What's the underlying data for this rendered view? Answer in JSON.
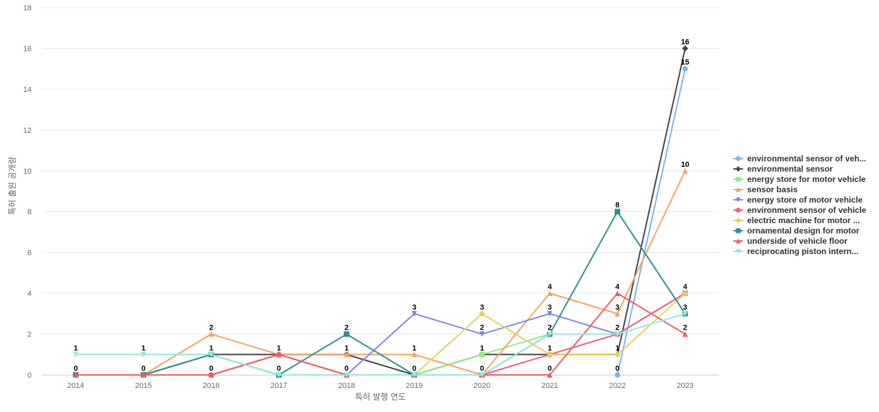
{
  "chart_data": {
    "type": "line",
    "title": "",
    "xlabel": "특허 발행 연도",
    "ylabel": "특허 출원 공개량",
    "x": [
      "2014",
      "2015",
      "2016",
      "2017",
      "2018",
      "2019",
      "2020",
      "2021",
      "2022",
      "2023"
    ],
    "ylim": [
      0,
      18
    ],
    "yticks": [
      0,
      2,
      4,
      6,
      8,
      10,
      12,
      14,
      16,
      18
    ],
    "grid": true,
    "legend_position": "right",
    "series": [
      {
        "name": "environmental sensor of veh...",
        "color": "#7cb5ec",
        "marker": "circle",
        "values": [
          null,
          null,
          null,
          null,
          null,
          null,
          null,
          null,
          0,
          15
        ]
      },
      {
        "name": "environmental sensor",
        "color": "#434348",
        "marker": "diamond",
        "values": [
          0,
          0,
          1,
          1,
          1,
          0,
          1,
          1,
          1,
          16
        ]
      },
      {
        "name": "energy store for motor vehicle",
        "color": "#90ed7d",
        "marker": "square",
        "values": [
          null,
          null,
          null,
          null,
          null,
          0,
          1,
          2,
          2,
          4
        ]
      },
      {
        "name": "sensor basis",
        "color": "#f7a35c",
        "marker": "triangle",
        "values": [
          0,
          0,
          2,
          1,
          1,
          1,
          0,
          4,
          3,
          10
        ]
      },
      {
        "name": "energy store of motor vehicle",
        "color": "#8085e9",
        "marker": "triangle-down",
        "values": [
          null,
          null,
          null,
          null,
          0,
          3,
          2,
          3,
          2,
          4
        ]
      },
      {
        "name": "environment sensor of vehicle",
        "color": "#f15c80",
        "marker": "circle",
        "values": [
          0,
          0,
          0,
          1,
          0,
          0,
          0,
          1,
          2,
          4
        ]
      },
      {
        "name": "electric machine for motor ...",
        "color": "#e4d354",
        "marker": "diamond",
        "values": [
          null,
          null,
          null,
          null,
          null,
          0,
          3,
          1,
          1,
          4
        ]
      },
      {
        "name": "ornamental design for motor",
        "color": "#2b908f",
        "marker": "square",
        "values": [
          0,
          0,
          1,
          0,
          2,
          0,
          0,
          2,
          8,
          3
        ]
      },
      {
        "name": "underside of vehicle floor",
        "color": "#f45b5b",
        "marker": "triangle",
        "values": [
          0,
          0,
          0,
          1,
          0,
          0,
          0,
          0,
          4,
          2
        ]
      },
      {
        "name": "reciprocating piston intern...",
        "color": "#91e8e1",
        "marker": "triangle-down",
        "values": [
          1,
          1,
          1,
          0,
          0,
          0,
          0,
          2,
          2,
          3
        ]
      }
    ],
    "data_labels": [
      {
        "x": "2014",
        "label": "1",
        "y": 1
      },
      {
        "x": "2014",
        "label": "0",
        "y": 0
      },
      {
        "x": "2015",
        "label": "1",
        "y": 1
      },
      {
        "x": "2015",
        "label": "0",
        "y": 0
      },
      {
        "x": "2016",
        "label": "2",
        "y": 2
      },
      {
        "x": "2016",
        "label": "1",
        "y": 1
      },
      {
        "x": "2016",
        "label": "0",
        "y": 0
      },
      {
        "x": "2017",
        "label": "1",
        "y": 1
      },
      {
        "x": "2017",
        "label": "0",
        "y": 0
      },
      {
        "x": "2018",
        "label": "2",
        "y": 2
      },
      {
        "x": "2018",
        "label": "1",
        "y": 1
      },
      {
        "x": "2018",
        "label": "0",
        "y": 0
      },
      {
        "x": "2019",
        "label": "3",
        "y": 3
      },
      {
        "x": "2019",
        "label": "1",
        "y": 1
      },
      {
        "x": "2019",
        "label": "0",
        "y": 0
      },
      {
        "x": "2020",
        "label": "3",
        "y": 3
      },
      {
        "x": "2020",
        "label": "2",
        "y": 2
      },
      {
        "x": "2020",
        "label": "1",
        "y": 1
      },
      {
        "x": "2020",
        "label": "0",
        "y": 0
      },
      {
        "x": "2021",
        "label": "4",
        "y": 4
      },
      {
        "x": "2021",
        "label": "3",
        "y": 3
      },
      {
        "x": "2021",
        "label": "2",
        "y": 2
      },
      {
        "x": "2021",
        "label": "1",
        "y": 1
      },
      {
        "x": "2021",
        "label": "0",
        "y": 0
      },
      {
        "x": "2022",
        "label": "8",
        "y": 8
      },
      {
        "x": "2022",
        "label": "4",
        "y": 4
      },
      {
        "x": "2022",
        "label": "3",
        "y": 3
      },
      {
        "x": "2022",
        "label": "2",
        "y": 2
      },
      {
        "x": "2022",
        "label": "1",
        "y": 1
      },
      {
        "x": "2022",
        "label": "0",
        "y": 0
      },
      {
        "x": "2023",
        "label": "16",
        "y": 16
      },
      {
        "x": "2023",
        "label": "15",
        "y": 15
      },
      {
        "x": "2023",
        "label": "10",
        "y": 10
      },
      {
        "x": "2023",
        "label": "4",
        "y": 4
      },
      {
        "x": "2023",
        "label": "3",
        "y": 3
      },
      {
        "x": "2023",
        "label": "2",
        "y": 2
      }
    ]
  }
}
